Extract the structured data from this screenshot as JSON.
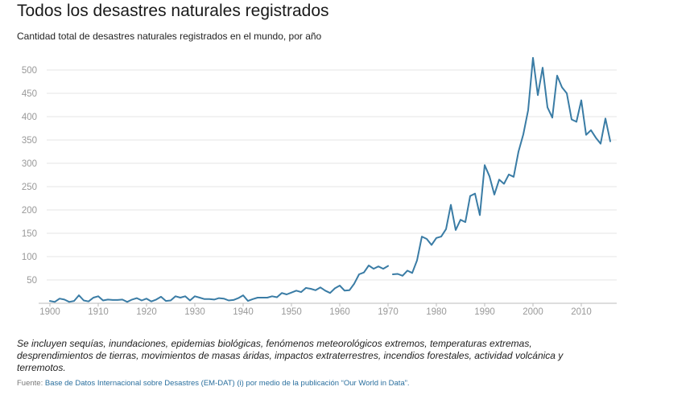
{
  "header": {
    "title": "Todos los desastres naturales registrados",
    "subtitle": "Cantidad total de desastres naturales registrados en el mundo, por año"
  },
  "footer": {
    "note": "Se incluyen sequías, inundaciones, epidemias biológicas, fenómenos meteorológicos extremos, temperaturas extremas, desprendimientos de tierras, movimientos de masas áridas, impactos extraterrestres, incendios forestales, actividad volcánica y terremotos.",
    "source_prefix": "Fuente: ",
    "source_link": "Base de Datos Internacional sobre Desastres (EM-DAT) (i) por medio de la publicación “Our World in Data”."
  },
  "colors": {
    "line": "#3a7ca5",
    "grid": "#e6e6e6",
    "tick_text": "#999999",
    "link": "#2a6f9e"
  },
  "chart_data": {
    "type": "line",
    "xlim": [
      1900,
      2016
    ],
    "ylim": [
      0,
      525
    ],
    "x_ticks": [
      1900,
      1910,
      1920,
      1930,
      1940,
      1950,
      1960,
      1970,
      1980,
      1990,
      2000,
      2010
    ],
    "y_ticks": [
      50,
      100,
      150,
      200,
      250,
      300,
      350,
      400,
      450,
      500
    ],
    "grid": true,
    "legend": "none",
    "segments": [
      {
        "x": [
          1900,
          1901,
          1902,
          1903,
          1904,
          1905,
          1906,
          1907,
          1908,
          1909,
          1910,
          1911,
          1912,
          1913,
          1914,
          1915,
          1916,
          1917,
          1918,
          1919,
          1920,
          1921,
          1922,
          1923,
          1924,
          1925,
          1926,
          1927,
          1928,
          1929,
          1930,
          1931,
          1932,
          1933,
          1934,
          1935,
          1936,
          1937,
          1938,
          1939,
          1940,
          1941,
          1942,
          1943,
          1944,
          1945,
          1946,
          1947,
          1948,
          1949,
          1950,
          1951,
          1952,
          1953,
          1954,
          1955,
          1956,
          1957,
          1958,
          1959,
          1960,
          1961,
          1962,
          1963,
          1964,
          1965,
          1966,
          1967,
          1968,
          1969,
          1970
        ],
        "y": [
          5,
          3,
          10,
          8,
          3,
          5,
          17,
          6,
          4,
          12,
          15,
          6,
          8,
          7,
          7,
          8,
          3,
          8,
          11,
          6,
          10,
          4,
          8,
          14,
          5,
          6,
          15,
          12,
          15,
          6,
          15,
          12,
          9,
          9,
          8,
          11,
          10,
          6,
          7,
          11,
          17,
          5,
          9,
          12,
          12,
          12,
          15,
          13,
          22,
          19,
          23,
          27,
          24,
          33,
          31,
          28,
          34,
          27,
          22,
          32,
          38,
          27,
          28,
          42,
          62,
          66,
          81,
          74,
          79,
          74,
          80
        ]
      },
      {
        "x": [
          1971,
          1972,
          1973,
          1974,
          1975,
          1976,
          1977,
          1978,
          1979,
          1980,
          1981,
          1982,
          1983,
          1984,
          1985,
          1986,
          1987,
          1988,
          1989,
          1990,
          1991,
          1992,
          1993,
          1994,
          1995,
          1996,
          1997,
          1998,
          1999,
          2000,
          2001,
          2002,
          2003,
          2004,
          2005,
          2006,
          2007,
          2008,
          2009,
          2010,
          2011,
          2012,
          2013,
          2014,
          2015,
          2016
        ],
        "y": [
          62,
          63,
          59,
          70,
          65,
          92,
          143,
          138,
          125,
          140,
          143,
          159,
          211,
          157,
          179,
          174,
          230,
          235,
          189,
          296,
          272,
          233,
          265,
          256,
          276,
          271,
          325,
          362,
          414,
          526,
          446,
          505,
          420,
          398,
          488,
          463,
          450,
          394,
          389,
          435,
          361,
          371,
          355,
          342,
          396,
          347
        ]
      }
    ]
  }
}
